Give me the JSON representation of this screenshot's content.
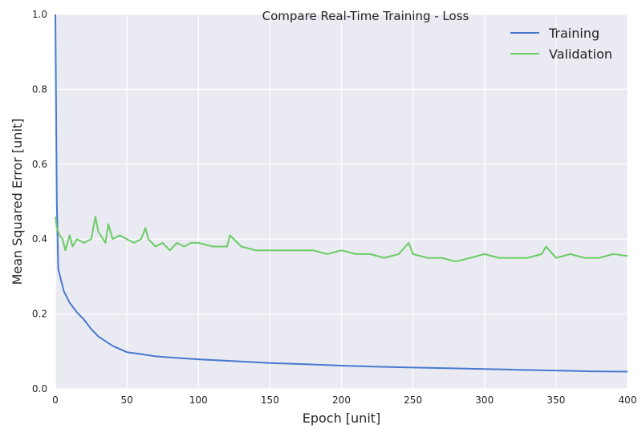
{
  "chart_data": {
    "type": "line",
    "title": "Compare Real-Time Training - Loss",
    "xlabel": "Epoch [unit]",
    "ylabel": "Mean Squared Error [unit]",
    "xlim": [
      0,
      400
    ],
    "ylim": [
      0.0,
      1.0
    ],
    "xticks": [
      "0",
      "50",
      "100",
      "150",
      "200",
      "250",
      "300",
      "350",
      "400"
    ],
    "yticks": [
      "0.0",
      "0.2",
      "0.4",
      "0.6",
      "0.8",
      "1.0"
    ],
    "grid": true,
    "legend_position": "top-right",
    "series": [
      {
        "name": "Training",
        "color": "#4878cf",
        "x": [
          0,
          1,
          2,
          4,
          6,
          8,
          10,
          15,
          20,
          25,
          30,
          40,
          50,
          60,
          70,
          80,
          100,
          125,
          150,
          175,
          200,
          225,
          250,
          275,
          300,
          325,
          350,
          375,
          400
        ],
        "y": [
          1.0,
          0.5,
          0.32,
          0.29,
          0.26,
          0.245,
          0.23,
          0.205,
          0.185,
          0.16,
          0.14,
          0.115,
          0.098,
          0.093,
          0.087,
          0.084,
          0.079,
          0.074,
          0.069,
          0.066,
          0.062,
          0.059,
          0.057,
          0.055,
          0.053,
          0.051,
          0.049,
          0.047,
          0.046
        ]
      },
      {
        "name": "Validation",
        "color": "#6acc65",
        "x": [
          0,
          1,
          3,
          5,
          7,
          10,
          12,
          15,
          20,
          25,
          28,
          30,
          35,
          37,
          40,
          45,
          50,
          55,
          60,
          63,
          65,
          70,
          75,
          80,
          85,
          90,
          95,
          100,
          110,
          120,
          122,
          130,
          140,
          150,
          160,
          170,
          180,
          190,
          200,
          210,
          220,
          230,
          240,
          247,
          250,
          260,
          270,
          280,
          290,
          300,
          310,
          320,
          330,
          340,
          343,
          350,
          360,
          370,
          380,
          390,
          400
        ],
        "y": [
          0.46,
          0.43,
          0.41,
          0.4,
          0.37,
          0.41,
          0.38,
          0.4,
          0.39,
          0.4,
          0.46,
          0.42,
          0.39,
          0.44,
          0.4,
          0.41,
          0.4,
          0.39,
          0.4,
          0.43,
          0.4,
          0.38,
          0.39,
          0.37,
          0.39,
          0.38,
          0.39,
          0.39,
          0.38,
          0.38,
          0.41,
          0.38,
          0.37,
          0.37,
          0.37,
          0.37,
          0.37,
          0.36,
          0.37,
          0.36,
          0.36,
          0.35,
          0.36,
          0.39,
          0.36,
          0.35,
          0.35,
          0.34,
          0.35,
          0.36,
          0.35,
          0.35,
          0.35,
          0.36,
          0.38,
          0.35,
          0.36,
          0.35,
          0.35,
          0.36,
          0.355
        ]
      }
    ]
  }
}
